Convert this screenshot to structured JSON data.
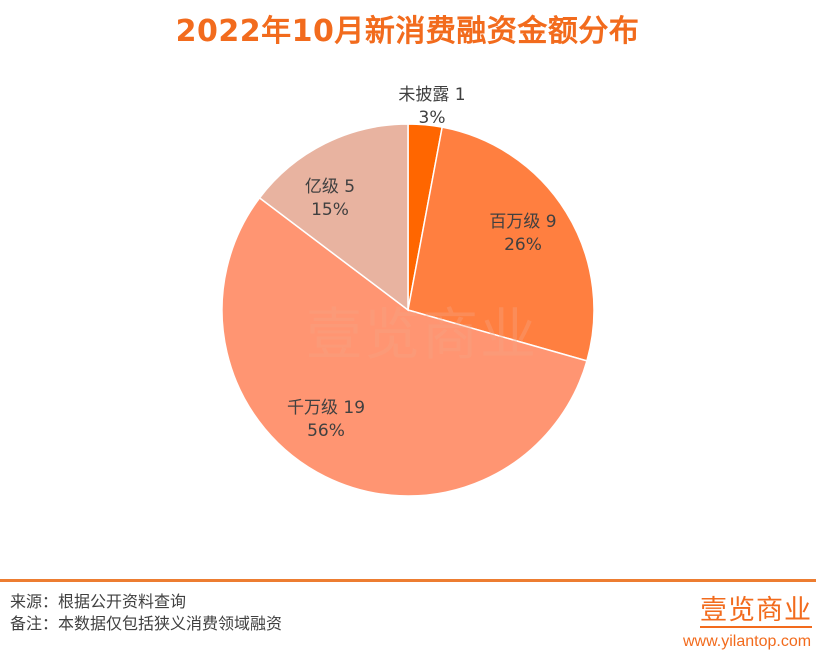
{
  "header": {
    "title": "2022年10月新消费融资金额分布"
  },
  "chart_data": {
    "type": "pie",
    "title": "2022年10月新消费融资金额分布",
    "slices": [
      {
        "name": "未披露",
        "value": 1,
        "percent": "3%",
        "color": "#FF6600"
      },
      {
        "name": "百万级",
        "value": 9,
        "percent": "26%",
        "color": "#FF7F40"
      },
      {
        "name": "千万级",
        "value": 19,
        "percent": "56%",
        "color": "#FF9572"
      },
      {
        "name": "亿级",
        "value": 5,
        "percent": "15%",
        "color": "#E8B3A0"
      }
    ],
    "start_angle": "12 o'clock",
    "direction": "clockwise"
  },
  "watermark": {
    "text": "壹览商业"
  },
  "footer": {
    "source": "来源：根据公开资料查询",
    "note": "备注：本数据仅包括狭义消费领域融资"
  },
  "brand": {
    "logo_text": "壹览商业",
    "url": "www.yilantop.com",
    "accent": "#F26B1D"
  }
}
